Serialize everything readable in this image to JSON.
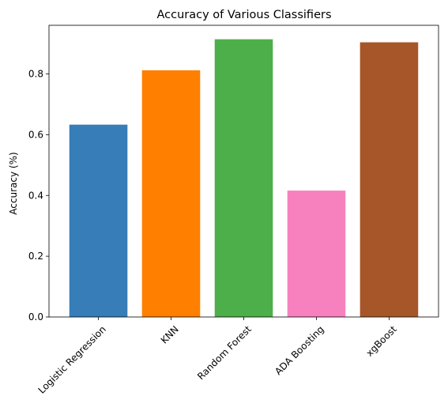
{
  "chart_data": {
    "type": "bar",
    "title": "Accuracy of Various Classifiers",
    "xlabel": "",
    "ylabel": "Accuracy (%)",
    "categories": [
      "Logistic Regression",
      "KNN",
      "Random Forest",
      "ADA Boosting",
      "xgBoost"
    ],
    "values": [
      0.633,
      0.812,
      0.914,
      0.416,
      0.904
    ],
    "colors": [
      "#377eb8",
      "#ff7f00",
      "#4daf4a",
      "#f781bf",
      "#a65628"
    ],
    "ylim": [
      0,
      0.96
    ],
    "yticks": [
      "0.0",
      "0.2",
      "0.4",
      "0.6",
      "0.8"
    ],
    "grid": false,
    "legend": "none"
  }
}
